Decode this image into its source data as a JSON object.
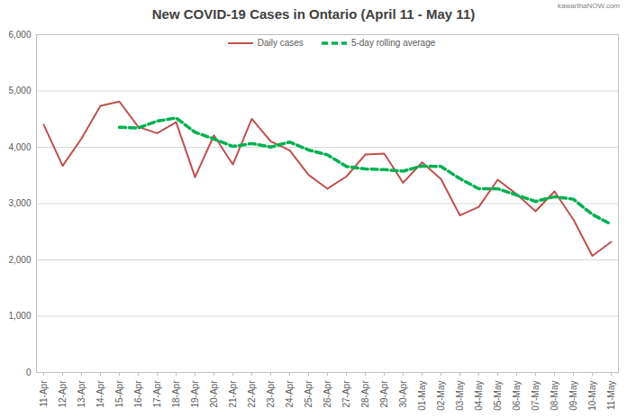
{
  "chart_data": {
    "type": "line",
    "title": "New COVID-19 Cases in Ontario (April 11 - May 11)",
    "annotation": "kawarthaNOW.com",
    "categories": [
      "11-Apr",
      "12-Apr",
      "13-Apr",
      "14-Apr",
      "15-Apr",
      "16-Apr",
      "17-Apr",
      "18-Apr",
      "19-Apr",
      "20-Apr",
      "21-Apr",
      "22-Apr",
      "23-Apr",
      "24-Apr",
      "25-Apr",
      "26-Apr",
      "27-Apr",
      "28-Apr",
      "29-Apr",
      "30-Apr",
      "01-May",
      "02-May",
      "03-May",
      "04-May",
      "05-May",
      "06-May",
      "07-May",
      "08-May",
      "09-May",
      "10-May",
      "11-May"
    ],
    "series": [
      {
        "name": "Daily cases",
        "color": "#c0504d",
        "line_style": "solid",
        "values": [
          4401,
          3670,
          4156,
          4736,
          4812,
          4362,
          4250,
          4447,
          3469,
          4212,
          3695,
          4505,
          4105,
          3947,
          3510,
          3265,
          3480,
          3871,
          3887,
          3369,
          3732,
          3436,
          2791,
          2941,
          3424,
          3166,
          2864,
          3216,
          2716,
          2073,
          2320
        ]
      },
      {
        "name": "5-day rolling average",
        "color": "#00b050",
        "line_style": "dashed",
        "values": [
          null,
          null,
          null,
          null,
          4355,
          4343,
          4465,
          4521,
          4268,
          4148,
          4015,
          4066,
          4004,
          4093,
          3952,
          3866,
          3661,
          3615,
          3603,
          3576,
          3668,
          3659,
          3443,
          3264,
          3265,
          3152,
          3038,
          3122,
          3078,
          2807,
          2632
        ]
      }
    ],
    "ylim": [
      0,
      6000
    ],
    "yticks": [
      0,
      {
        "value": 1000,
        "label": "1,000"
      },
      {
        "value": 2000,
        "label": "2,000"
      },
      {
        "value": 3000,
        "label": "3,000"
      },
      {
        "value": 4000,
        "label": "4,000"
      },
      {
        "value": 5000,
        "label": "5,000"
      },
      {
        "value": 6000,
        "label": "6,000"
      }
    ],
    "grid": true,
    "legend": "top"
  }
}
